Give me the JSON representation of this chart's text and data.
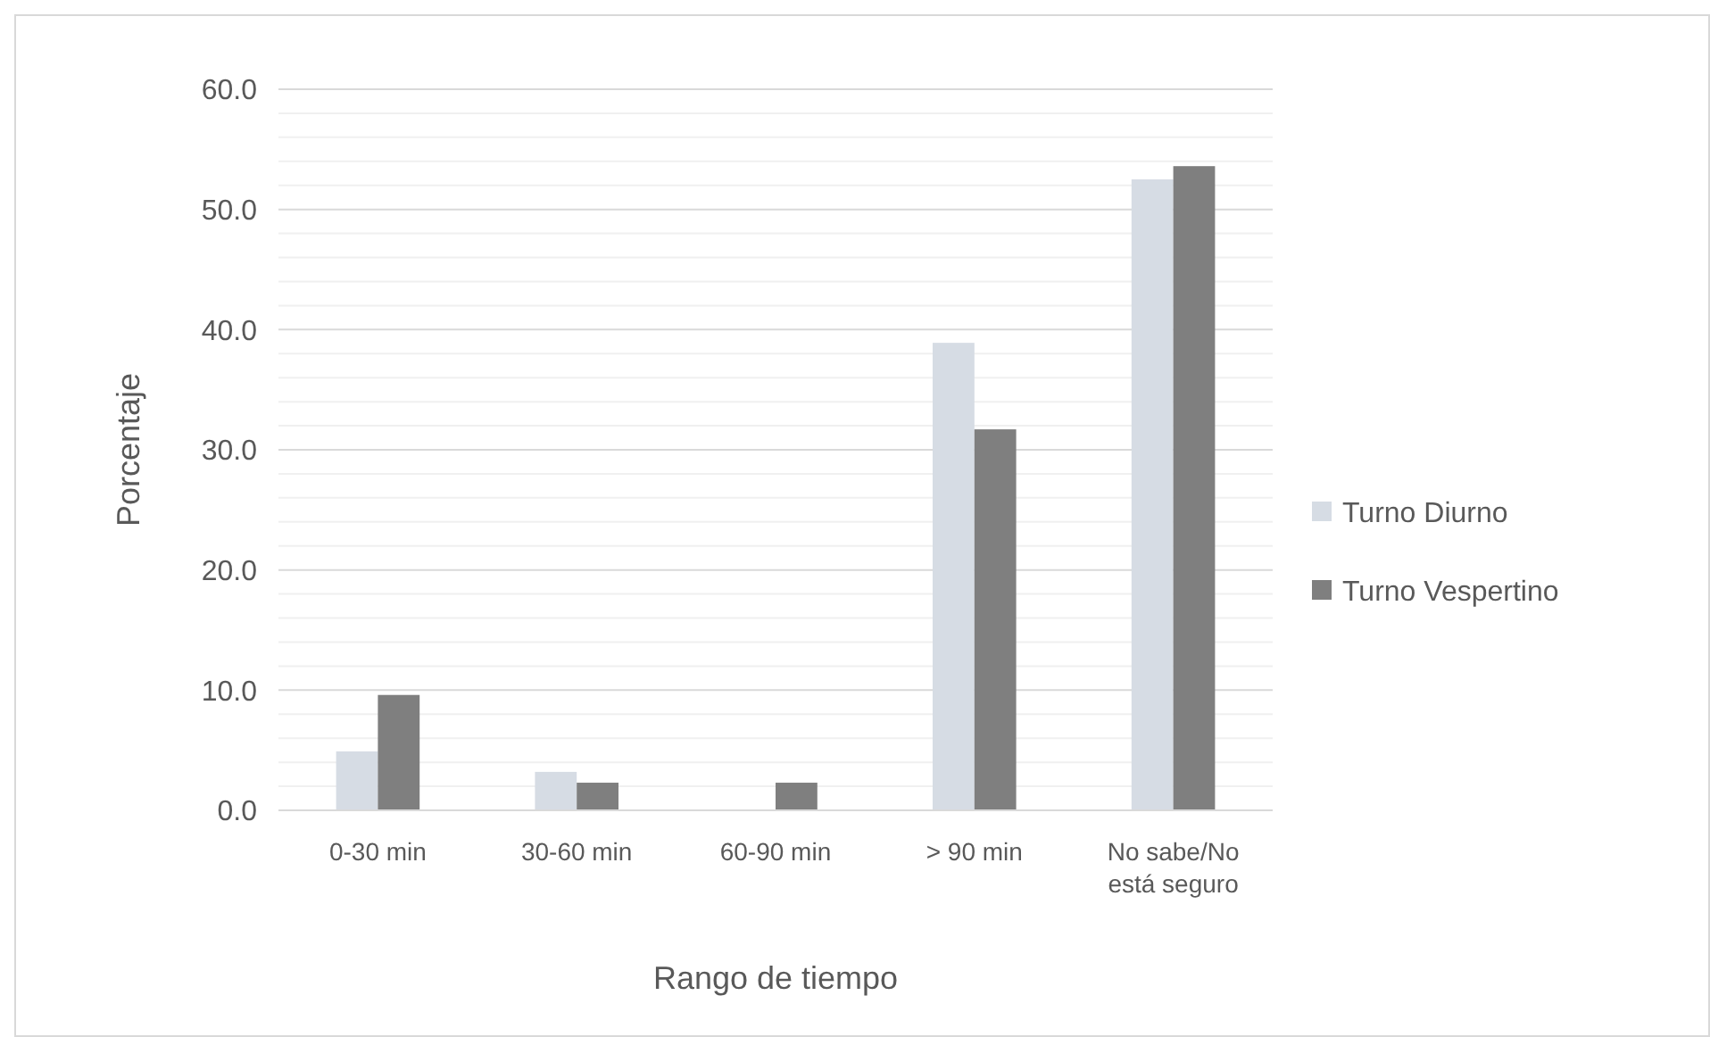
{
  "chart_data": {
    "type": "bar",
    "xlabel": "Rango de tiempo",
    "ylabel": "Porcentaje",
    "categories": [
      "0-30 min",
      "30-60 min",
      "60-90 min",
      "> 90 min",
      "No sabe/No está seguro"
    ],
    "series": [
      {
        "name": "Turno Diurno",
        "color": "#d6dce4",
        "values": [
          4.9,
          3.2,
          0,
          38.9,
          52.5
        ]
      },
      {
        "name": "Turno Vespertino",
        "color": "#7f7f7f",
        "values": [
          9.6,
          2.3,
          2.3,
          31.7,
          53.6
        ]
      }
    ],
    "ylim": [
      0,
      60
    ],
    "yticks": [
      {
        "value": 0,
        "label": "0.0"
      },
      {
        "value": 2,
        "label": null
      },
      {
        "value": 4,
        "label": null
      },
      {
        "value": 6,
        "label": null
      },
      {
        "value": 8,
        "label": null
      },
      {
        "value": 10,
        "label": "10.0"
      },
      {
        "value": 12,
        "label": null
      },
      {
        "value": 14,
        "label": null
      },
      {
        "value": 16,
        "label": null
      },
      {
        "value": 18,
        "label": null
      },
      {
        "value": 20,
        "label": "20.0"
      },
      {
        "value": 22,
        "label": null
      },
      {
        "value": 24,
        "label": null
      },
      {
        "value": 26,
        "label": null
      },
      {
        "value": 28,
        "label": null
      },
      {
        "value": 30,
        "label": "30.0"
      },
      {
        "value": 32,
        "label": null
      },
      {
        "value": 34,
        "label": null
      },
      {
        "value": 36,
        "label": null
      },
      {
        "value": 38,
        "label": null
      },
      {
        "value": 40,
        "label": "40.0"
      },
      {
        "value": 42,
        "label": null
      },
      {
        "value": 44,
        "label": null
      },
      {
        "value": 46,
        "label": null
      },
      {
        "value": 48,
        "label": null
      },
      {
        "value": 50,
        "label": "50.0"
      },
      {
        "value": 52,
        "label": null
      },
      {
        "value": 54,
        "label": null
      },
      {
        "value": 56,
        "label": null
      },
      {
        "value": 58,
        "label": null
      },
      {
        "value": 60,
        "label": "60.0"
      }
    ],
    "grid": true,
    "legend": "right"
  }
}
